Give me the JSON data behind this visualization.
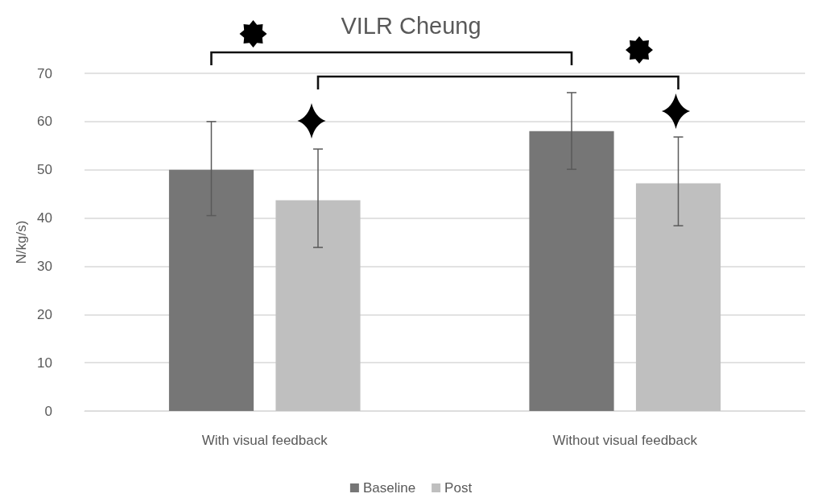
{
  "chart_data": {
    "type": "bar",
    "title": "VILR Cheung",
    "ylabel": "N/kg/s)",
    "categories": [
      "With visual feedback",
      "Without visual feedback"
    ],
    "series": [
      {
        "name": "Baseline",
        "color": "#767676",
        "values": [
          50,
          58
        ],
        "errors": [
          [
            40.5,
            60
          ],
          [
            50.1,
            66
          ]
        ]
      },
      {
        "name": "Post",
        "color": "#bfbfbf",
        "values": [
          43.7,
          47.2
        ],
        "errors": [
          [
            33.9,
            54.3
          ],
          [
            38.4,
            56.8
          ]
        ]
      }
    ],
    "ylim": [
      0,
      70
    ],
    "yticks": [
      0,
      10,
      20,
      30,
      40,
      50,
      60,
      70
    ],
    "grid": "y",
    "legend": "bottom"
  }
}
